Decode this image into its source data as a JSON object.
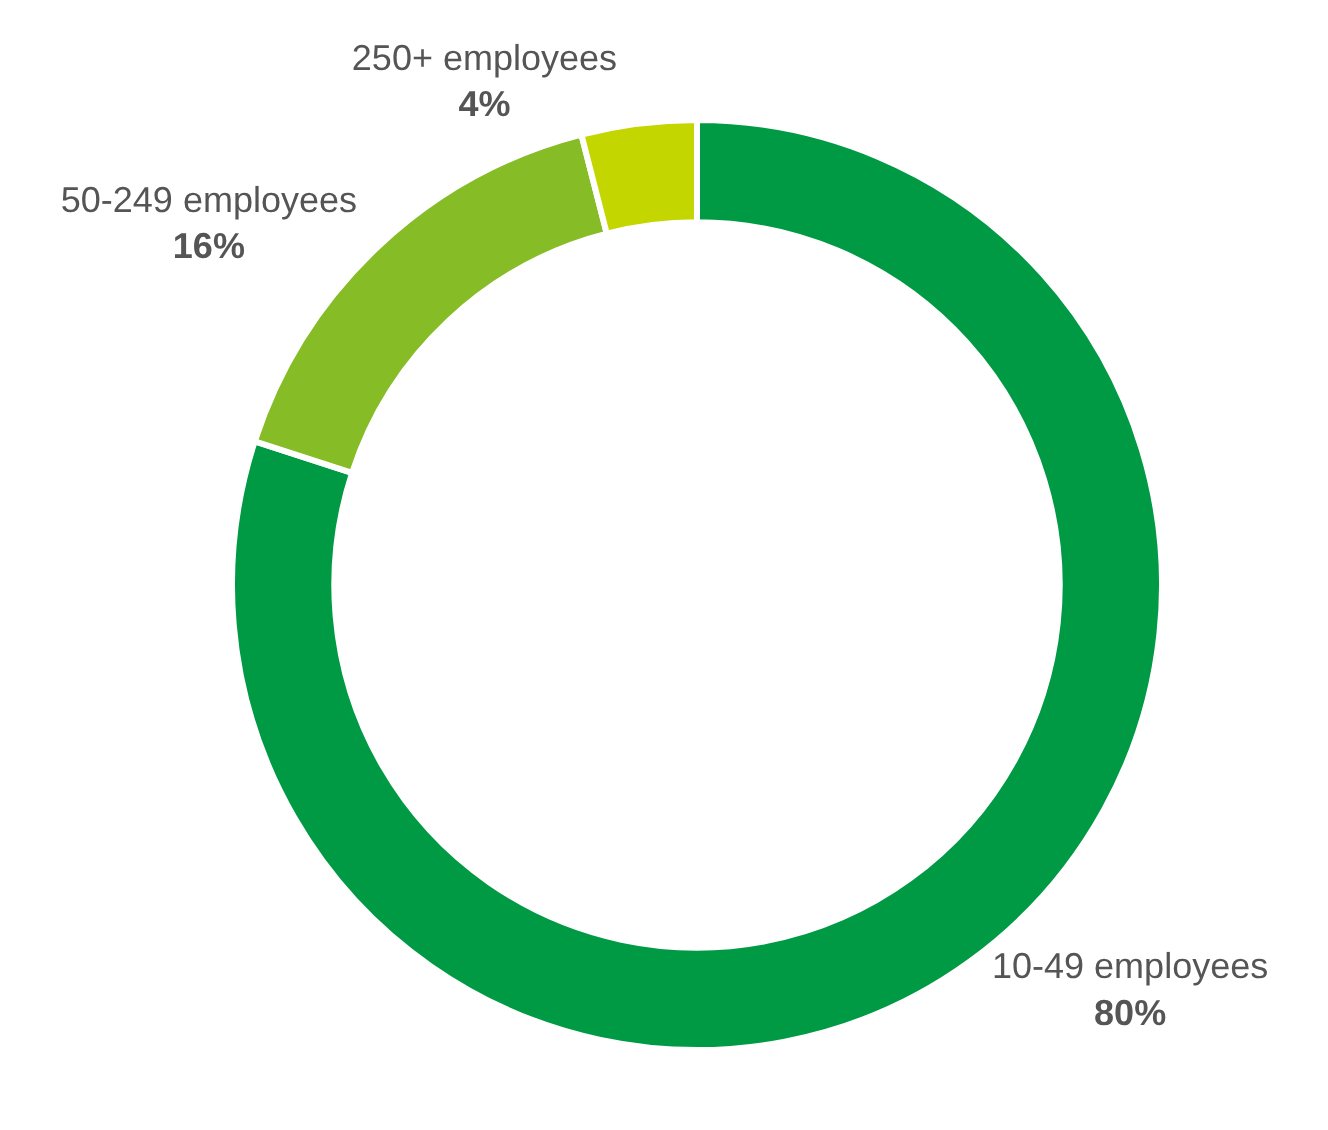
{
  "chart_data": {
    "type": "donut",
    "categories": [
      "10-49 employees",
      "50-249 employees",
      "250+ employees"
    ],
    "values": [
      80,
      16,
      4
    ],
    "colors": [
      "#009a44",
      "#86bc25",
      "#c4d600"
    ],
    "value_labels": [
      "80%",
      "16%",
      "4%"
    ],
    "legend": false
  }
}
